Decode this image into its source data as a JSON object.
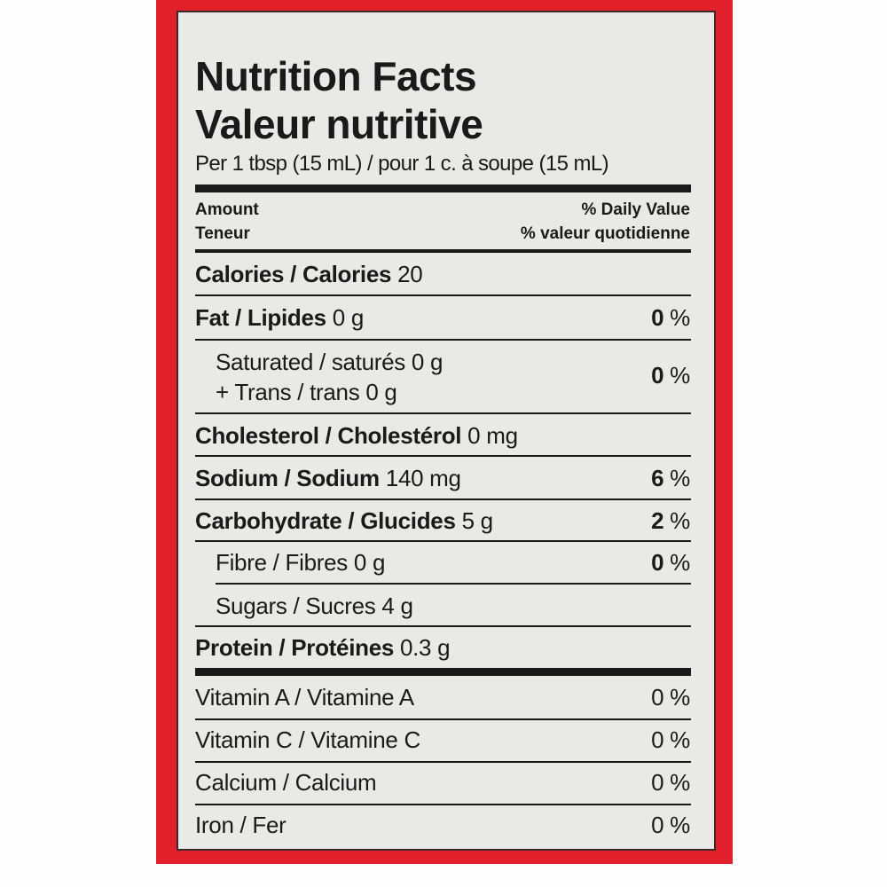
{
  "colors": {
    "border_red": "#e2202c",
    "panel": "#e9e9e7",
    "text": "#1a1a1a"
  },
  "title_en": "Nutrition Facts",
  "title_fr": "Valeur nutritive",
  "serving": "Per 1 tbsp (15 mL) / pour 1 c. à soupe (15 mL)",
  "header": {
    "amount": "Amount",
    "teneur": "Teneur",
    "dv": "% Daily Value",
    "dv_fr": "% valeur quotidienne"
  },
  "rows": {
    "calories": {
      "label": "Calories / Calories",
      "value": "20"
    },
    "fat": {
      "label": "Fat / Lipides",
      "value": "0 g",
      "dv": "0",
      "pct": "%"
    },
    "saturated": {
      "label": "Saturated / saturés 0 g",
      "trans": "+ Trans / trans 0 g",
      "dv": "0",
      "pct": "%"
    },
    "cholesterol": {
      "label": "Cholesterol / Cholestérol",
      "value": "0 mg"
    },
    "sodium": {
      "label": "Sodium / Sodium",
      "value": "140 mg",
      "dv": "6",
      "pct": "%"
    },
    "carbohydrate": {
      "label": "Carbohydrate / Glucides",
      "value": "5 g",
      "dv": "2",
      "pct": "%"
    },
    "fibre": {
      "label": "Fibre / Fibres 0 g",
      "dv": "0",
      "pct": "%"
    },
    "sugars": {
      "label": "Sugars / Sucres 4 g"
    },
    "protein": {
      "label": "Protein / Protéines",
      "value": "0.3 g"
    }
  },
  "vitamins": [
    {
      "label": "Vitamin A / Vitamine A",
      "dv": "0 %"
    },
    {
      "label": "Vitamin C / Vitamine C",
      "dv": "0 %"
    },
    {
      "label": "Calcium / Calcium",
      "dv": "0 %"
    },
    {
      "label": "Iron / Fer",
      "dv": "0 %"
    }
  ]
}
